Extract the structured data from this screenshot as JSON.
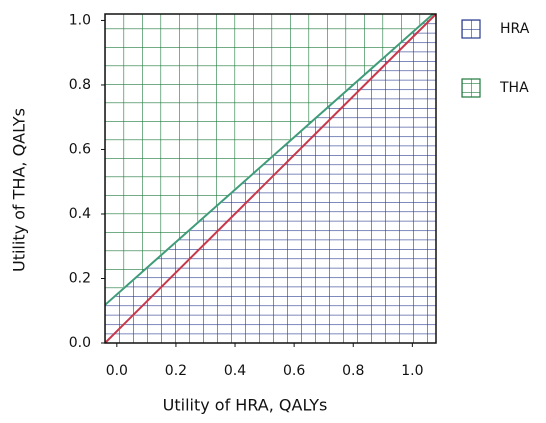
{
  "chart_data": {
    "type": "region",
    "x_label": "Utility of HRA, QALYs",
    "y_label": "Utility of THA, QALYs",
    "xlim": [
      -0.04,
      1.08
    ],
    "ylim": [
      0,
      1.02
    ],
    "xticks": [
      {
        "value": 0,
        "label": "0.0"
      },
      0.2,
      0.4,
      0.6,
      0.8,
      {
        "value": 1,
        "label": "1.0"
      }
    ],
    "yticks": [
      {
        "value": 0,
        "label": "0.0"
      },
      0.2,
      0.4,
      0.6,
      0.8,
      {
        "value": 1,
        "label": "1.0"
      }
    ],
    "series": [
      {
        "name": "HRA",
        "color": "#2b3b8f",
        "region": "below"
      },
      {
        "name": "THA",
        "color": "#1f7a3e",
        "region": "above"
      }
    ],
    "lines": [
      {
        "color": "#c8374a",
        "x": [
          -0.04,
          1.08
        ],
        "y": [
          0,
          1.02
        ]
      },
      {
        "color": "#3e9c78",
        "x": [
          -0.04,
          1.07
        ],
        "y": [
          0.118,
          1.02
        ]
      }
    ]
  }
}
